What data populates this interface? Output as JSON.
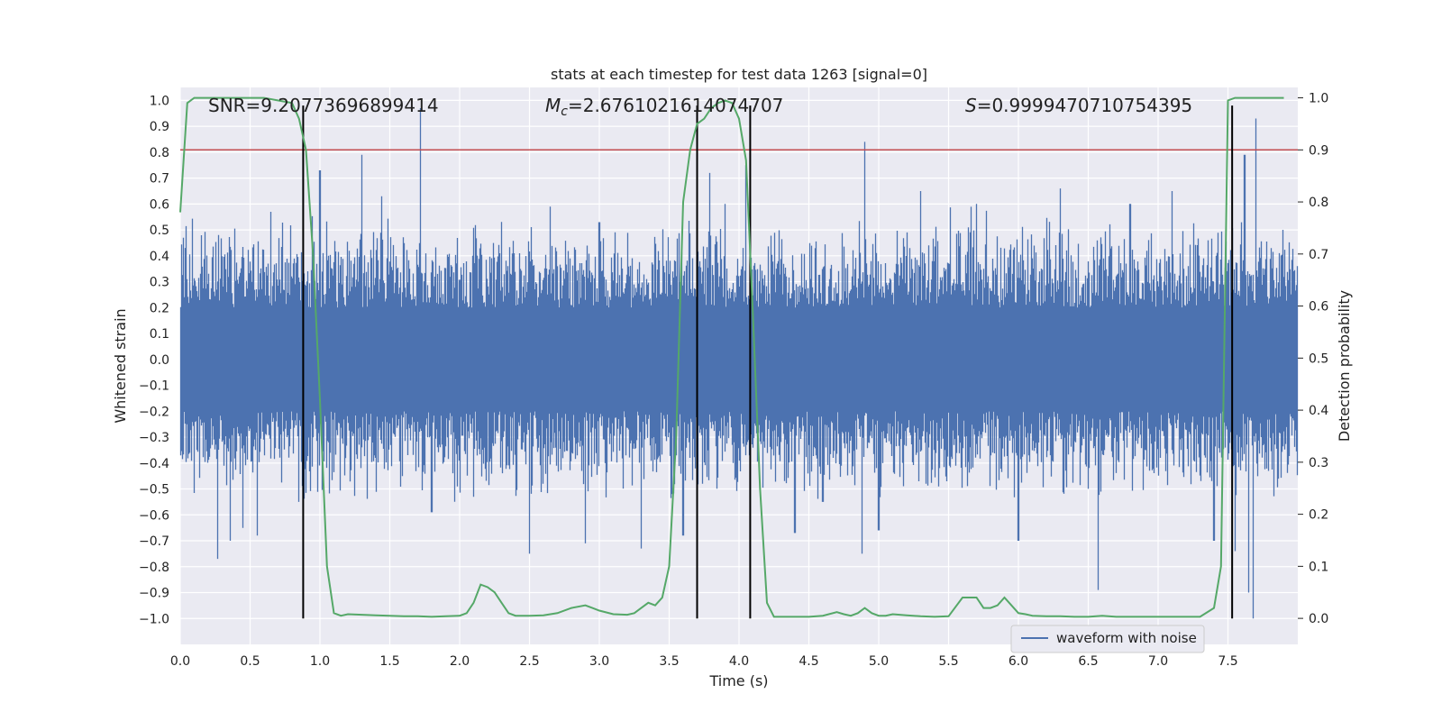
{
  "chart_data": {
    "type": "line",
    "title": "stats at each timestep for test data 1263 [signal=0]",
    "xlabel": "Time (s)",
    "ylabel_left": "Whitened strain",
    "ylabel_right": "Detection probability",
    "xlim": [
      0,
      8
    ],
    "ylim_left": [
      -1.1,
      1.05
    ],
    "ylim_right": [
      -0.05,
      1.02
    ],
    "x_ticks": [
      "0.0",
      "0.5",
      "1.0",
      "1.5",
      "2.0",
      "2.5",
      "3.0",
      "3.5",
      "4.0",
      "4.5",
      "5.0",
      "5.5",
      "6.0",
      "6.5",
      "7.0",
      "7.5"
    ],
    "y_ticks_left": [
      "1.0",
      "0.9",
      "0.8",
      "0.7",
      "0.6",
      "0.5",
      "0.4",
      "0.3",
      "0.2",
      "0.1",
      "0.0",
      "−0.1",
      "−0.2",
      "−0.3",
      "−0.4",
      "−0.5",
      "−0.6",
      "−0.7",
      "−0.8",
      "−0.9",
      "−1.0"
    ],
    "y_ticks_right": [
      "1.0",
      "0.9",
      "0.8",
      "0.7",
      "0.6",
      "0.5",
      "0.4",
      "0.3",
      "0.2",
      "0.1",
      "0.0"
    ],
    "grid": true,
    "legend_placement": "lower-right",
    "annotations": {
      "snr": "SNR=9.20773696899414",
      "mc_label": "M",
      "mc_sub": "c",
      "mc_value": "=2.6761021614074707",
      "s_label": "S",
      "s_value": "=0.9999470710754395"
    },
    "series": [
      {
        "name": "waveform with noise",
        "axis": "left",
        "color": "#4c72b0",
        "kind": "noise",
        "envelope": {
          "core_abs": 0.2,
          "typical_peak": 0.5,
          "spikes": [
            [
              0.27,
              -0.77
            ],
            [
              0.36,
              -0.7
            ],
            [
              0.45,
              -0.65
            ],
            [
              0.55,
              -0.68
            ],
            [
              0.65,
              0.57
            ],
            [
              0.85,
              -0.55
            ],
            [
              1.0,
              0.73
            ],
            [
              1.3,
              0.79
            ],
            [
              1.44,
              0.63
            ],
            [
              1.72,
              0.97
            ],
            [
              1.8,
              -0.59
            ],
            [
              2.1,
              -0.53
            ],
            [
              2.5,
              -0.75
            ],
            [
              2.65,
              0.59
            ],
            [
              2.9,
              -0.71
            ],
            [
              3.0,
              0.53
            ],
            [
              3.3,
              -0.73
            ],
            [
              3.6,
              -0.68
            ],
            [
              3.79,
              0.72
            ],
            [
              3.9,
              0.6
            ],
            [
              4.05,
              0.75
            ],
            [
              4.4,
              -0.67
            ],
            [
              4.6,
              -0.55
            ],
            [
              4.88,
              -0.75
            ],
            [
              4.9,
              0.84
            ],
            [
              5.0,
              -0.66
            ],
            [
              5.3,
              0.65
            ],
            [
              5.7,
              0.6
            ],
            [
              6.0,
              -0.7
            ],
            [
              6.3,
              0.66
            ],
            [
              6.57,
              -0.89
            ],
            [
              6.8,
              0.6
            ],
            [
              7.1,
              0.65
            ],
            [
              7.4,
              -0.7
            ],
            [
              7.55,
              -0.74
            ],
            [
              7.62,
              0.79
            ],
            [
              7.65,
              -0.9
            ],
            [
              7.68,
              -1.0
            ],
            [
              7.7,
              0.93
            ]
          ]
        }
      },
      {
        "name": "",
        "axis": "right",
        "color": "#55a868",
        "x": [
          0.0,
          0.05,
          0.1,
          0.2,
          0.4,
          0.6,
          0.8,
          0.85,
          0.9,
          0.95,
          1.0,
          1.05,
          1.1,
          1.15,
          1.2,
          1.3,
          1.4,
          1.5,
          1.6,
          1.7,
          1.8,
          1.9,
          2.0,
          2.05,
          2.1,
          2.15,
          2.2,
          2.25,
          2.3,
          2.35,
          2.4,
          2.5,
          2.6,
          2.7,
          2.8,
          2.9,
          2.95,
          3.0,
          3.1,
          3.2,
          3.25,
          3.3,
          3.35,
          3.4,
          3.45,
          3.5,
          3.55,
          3.6,
          3.65,
          3.7,
          3.75,
          3.8,
          3.85,
          3.9,
          3.95,
          4.0,
          4.05,
          4.1,
          4.15,
          4.2,
          4.25,
          4.3,
          4.4,
          4.5,
          4.6,
          4.7,
          4.75,
          4.8,
          4.85,
          4.9,
          4.95,
          5.0,
          5.05,
          5.1,
          5.2,
          5.3,
          5.4,
          5.5,
          5.6,
          5.7,
          5.75,
          5.8,
          5.85,
          5.9,
          5.95,
          6.0,
          6.05,
          6.1,
          6.2,
          6.3,
          6.4,
          6.5,
          6.6,
          6.7,
          6.75,
          6.8,
          6.9,
          7.0,
          7.1,
          7.2,
          7.3,
          7.4,
          7.45,
          7.5,
          7.55,
          7.6,
          7.65,
          7.7,
          7.8,
          7.9
        ],
        "values": [
          0.78,
          0.99,
          1.0,
          1.0,
          1.0,
          1.0,
          0.99,
          0.96,
          0.9,
          0.7,
          0.42,
          0.1,
          0.01,
          0.005,
          0.008,
          0.007,
          0.006,
          0.005,
          0.004,
          0.004,
          0.003,
          0.004,
          0.005,
          0.01,
          0.03,
          0.065,
          0.06,
          0.05,
          0.03,
          0.01,
          0.005,
          0.005,
          0.006,
          0.01,
          0.02,
          0.025,
          0.02,
          0.015,
          0.008,
          0.007,
          0.01,
          0.02,
          0.03,
          0.025,
          0.04,
          0.1,
          0.35,
          0.8,
          0.9,
          0.95,
          0.96,
          0.98,
          0.99,
          0.995,
          0.99,
          0.96,
          0.88,
          0.58,
          0.25,
          0.03,
          0.003,
          0.003,
          0.003,
          0.003,
          0.005,
          0.012,
          0.008,
          0.005,
          0.01,
          0.02,
          0.01,
          0.005,
          0.005,
          0.008,
          0.006,
          0.004,
          0.003,
          0.004,
          0.04,
          0.04,
          0.02,
          0.02,
          0.025,
          0.04,
          0.025,
          0.01,
          0.008,
          0.005,
          0.004,
          0.004,
          0.003,
          0.003,
          0.005,
          0.003,
          0.003,
          0.003,
          0.003,
          0.003,
          0.003,
          0.003,
          0.003,
          0.02,
          0.1,
          0.995,
          1.0,
          1.0,
          1.0,
          1.0,
          1.0,
          1.0
        ]
      }
    ],
    "threshold": {
      "axis": "right",
      "value": 0.9,
      "color": "#c44e52"
    },
    "vlines": {
      "color": "#000000",
      "x": [
        0.88,
        3.7,
        4.08,
        7.53
      ],
      "ymin": -1.0,
      "ymax": 0.98
    }
  },
  "theme": {
    "plot_bg": "#eaeaf2",
    "grid": "#ffffff",
    "text": "#222222"
  }
}
